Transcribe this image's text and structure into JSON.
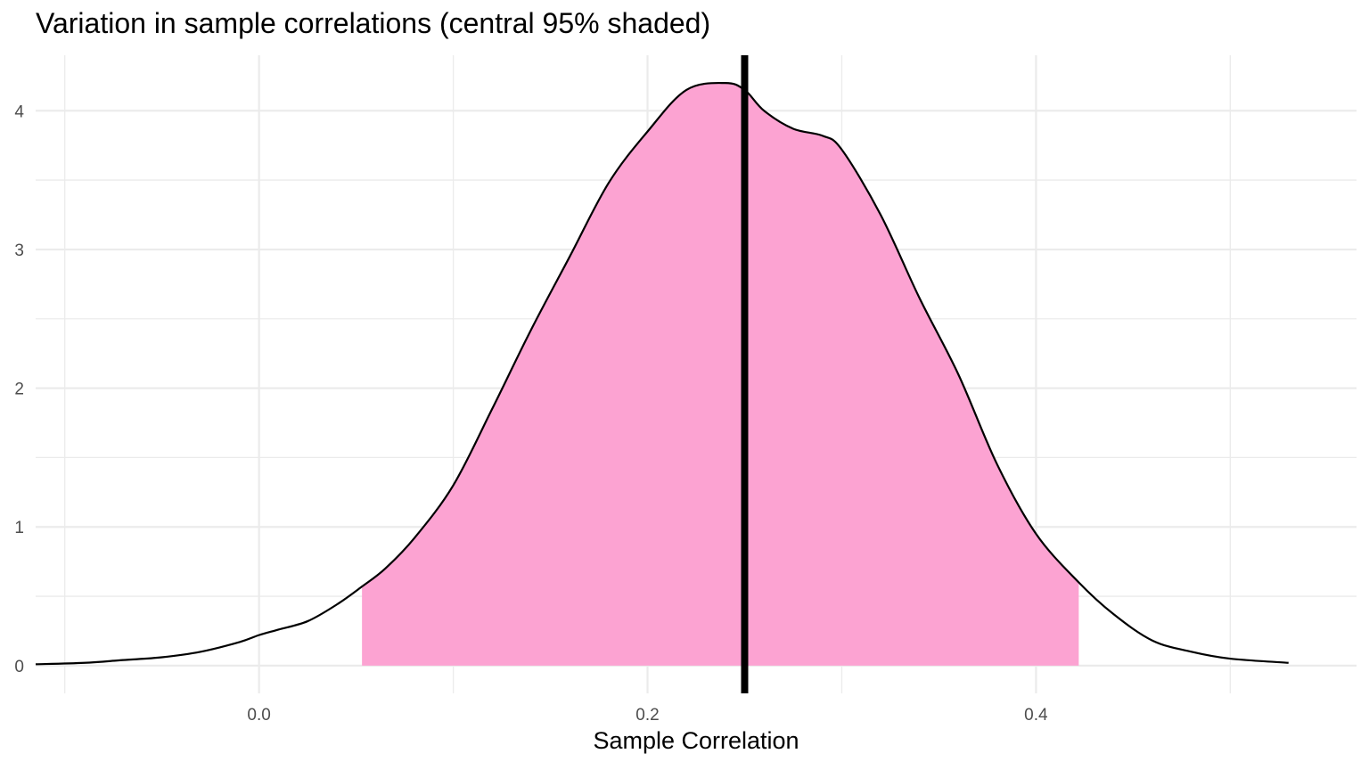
{
  "chart_data": {
    "type": "area",
    "title": "Variation in sample correlations  (central 95% shaded)",
    "xlabel": "Sample Correlation",
    "ylabel": "",
    "xlim": [
      -0.115,
      0.565
    ],
    "ylim": [
      -0.2,
      4.4
    ],
    "x_ticks": [
      0.0,
      0.2,
      0.4
    ],
    "x_tick_labels": [
      "0.0",
      "0.2",
      "0.4"
    ],
    "y_ticks": [
      0,
      1,
      2,
      3,
      4
    ],
    "y_tick_labels": [
      "0",
      "1",
      "2",
      "3",
      "4"
    ],
    "grid": true,
    "legend": "none",
    "density": {
      "x": [
        -0.115,
        -0.09,
        -0.07,
        -0.05,
        -0.03,
        -0.01,
        0.0,
        0.01,
        0.025,
        0.04,
        0.053,
        0.065,
        0.08,
        0.1,
        0.12,
        0.14,
        0.16,
        0.18,
        0.2,
        0.22,
        0.24,
        0.25,
        0.26,
        0.275,
        0.29,
        0.3,
        0.32,
        0.34,
        0.36,
        0.38,
        0.4,
        0.422,
        0.44,
        0.46,
        0.48,
        0.5,
        0.53
      ],
      "y": [
        0.01,
        0.02,
        0.04,
        0.06,
        0.1,
        0.17,
        0.22,
        0.26,
        0.32,
        0.44,
        0.57,
        0.7,
        0.92,
        1.3,
        1.85,
        2.42,
        2.95,
        3.48,
        3.85,
        4.15,
        4.2,
        4.15,
        4.0,
        3.87,
        3.82,
        3.72,
        3.25,
        2.65,
        2.1,
        1.45,
        0.95,
        0.6,
        0.37,
        0.18,
        0.1,
        0.05,
        0.02
      ]
    },
    "shaded_interval": [
      0.053,
      0.422
    ],
    "reference_line_x": 0.25,
    "colors": {
      "fill": "#fca3d2",
      "curve": "#000000",
      "reference_line": "#000000",
      "grid": "#ebebeb",
      "background": "#ffffff"
    }
  }
}
